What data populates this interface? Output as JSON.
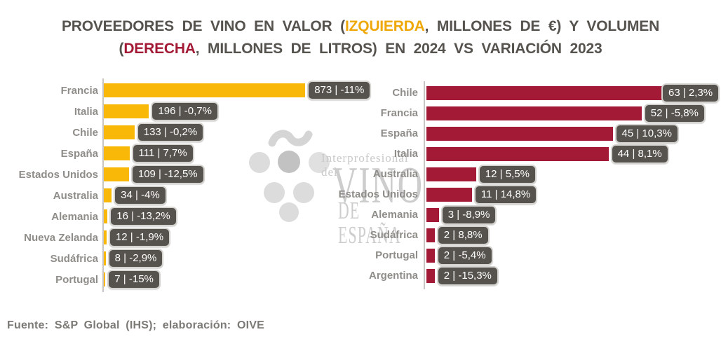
{
  "title": {
    "line1_parts": [
      {
        "text": "PROVEEDORES DE VINO EN VALOR (",
        "accent": null
      },
      {
        "text": "IZQUIERDA",
        "accent": "amber"
      },
      {
        "text": ", MILLONES DE €) Y VOLUMEN",
        "accent": null
      }
    ],
    "line2_parts": [
      {
        "text": "(",
        "accent": null
      },
      {
        "text": "DERECHA",
        "accent": "red"
      },
      {
        "text": ", MILLONES DE LITROS) EN 2024 VS VARIACIÓN 2023",
        "accent": null
      }
    ]
  },
  "watermark": {
    "line1": "Interprofesional del",
    "line2": "VINO",
    "line3": "DE ESPAÑA",
    "symbol": "grape-bunch"
  },
  "footer": "Fuente: S&P Global (IHS); elaboración: OIVE",
  "colors": {
    "amber": "#F9B807",
    "amber_title": "#EFA80A",
    "red": "#A21A35",
    "badge_bg": "#56534E",
    "badge_border": "#D6D4D0",
    "label_gray": "#8F8D89",
    "title_gray": "#56534F",
    "axis_gray": "#C8C5C2",
    "footer_gray": "#7C7A76",
    "watermark_gray": "#CDCDCD"
  },
  "value_label_separator": " | ",
  "chart_data": [
    {
      "type": "bar",
      "orientation": "horizontal",
      "panel": "izquierda",
      "measure": "valor",
      "unit": "millones de €",
      "period": "2024",
      "comparison": "variación 2023",
      "color_key": "amber",
      "legend": "none",
      "grid": "off",
      "xlim": [
        0,
        900
      ],
      "categories": [
        "Francia",
        "Italia",
        "Chile",
        "España",
        "Estados Unidos",
        "Australia",
        "Alemania",
        "Nueva Zelanda",
        "Sudáfrica",
        "Portugal"
      ],
      "values": [
        873,
        196,
        133,
        111,
        109,
        34,
        16,
        12,
        8,
        7
      ],
      "variation": [
        "-11%",
        "-0,7%",
        "-0,2%",
        "7,7%",
        "-12,5%",
        "-4%",
        "-13,2%",
        "-1,9%",
        "-2,9%",
        "-15%"
      ]
    },
    {
      "type": "bar",
      "orientation": "horizontal",
      "panel": "derecha",
      "measure": "volumen",
      "unit": "millones de litros",
      "period": "2024",
      "comparison": "variación 2023",
      "color_key": "red",
      "legend": "none",
      "grid": "off",
      "xlim": [
        0,
        65
      ],
      "categories": [
        "Chile",
        "Francia",
        "España",
        "Italia",
        "Australia",
        "Estados Unidos",
        "Alemania",
        "Sudáfrica",
        "Portugal",
        "Argentina"
      ],
      "values": [
        63,
        52,
        45,
        44,
        12,
        11,
        3,
        2,
        2,
        2
      ],
      "variation": [
        "2,3%",
        "-5,8%",
        "10,3%",
        "8,1%",
        "5,5%",
        "14,8%",
        "-8,9%",
        "8,8%",
        "-5,4%",
        "-15,3%"
      ]
    }
  ]
}
